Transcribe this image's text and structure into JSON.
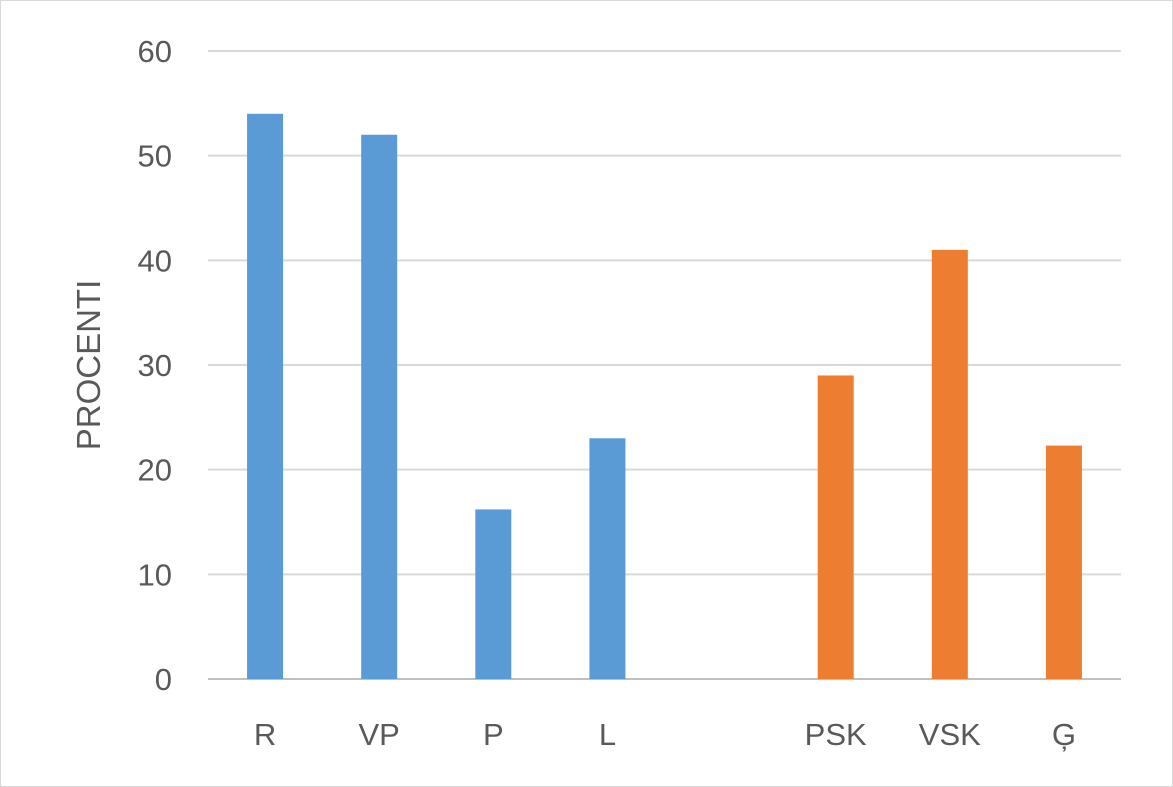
{
  "chart_data": {
    "type": "bar",
    "categories": [
      "R",
      "VP",
      "P",
      "L",
      "",
      "PSK",
      "VSK",
      "Ģ"
    ],
    "series": [
      {
        "values": [
          54,
          52,
          16.2,
          23,
          null,
          null,
          null,
          null
        ],
        "color": "#5b9bd5"
      },
      {
        "values": [
          null,
          null,
          null,
          null,
          null,
          29,
          41,
          22.3
        ],
        "color": "#ed7d31"
      }
    ],
    "title": "",
    "xlabel": "",
    "ylabel": "PROCENTI",
    "ylim": [
      0,
      60
    ],
    "yticks": [
      0,
      10,
      20,
      30,
      40,
      50,
      60
    ],
    "grid": true,
    "legend": "none"
  }
}
